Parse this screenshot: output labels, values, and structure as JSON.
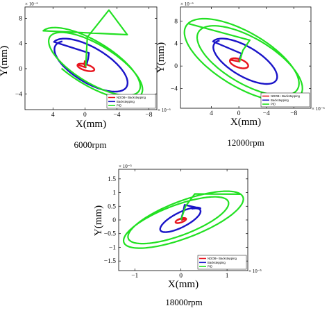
{
  "colors": {
    "ndob": "#e8141e",
    "backstepping": "#1a14c8",
    "pid": "#22e022"
  },
  "chart_data": [
    {
      "type": "line",
      "caption": "6000rpm",
      "xlabel": "X(mm)",
      "ylabel": "Y(mm)",
      "x_exponent": "× 10⁻⁶",
      "y_exponent": "× 10⁻⁶",
      "x_reversed": true,
      "xlim": [
        7.5,
        -9
      ],
      "ylim": [
        -6.5,
        9.8
      ],
      "xticks": [
        4,
        0,
        -4,
        -8
      ],
      "xtick_labels": [
        "4",
        "0",
        "−4",
        "−8"
      ],
      "yticks": [
        -4,
        0,
        4,
        8
      ],
      "ytick_labels": [
        "−4",
        "0",
        "4",
        "8"
      ],
      "legend": [
        "NDOB+ Backstepping",
        "Backstepping",
        "PID"
      ],
      "legend_position": "bottom-right",
      "series": [
        {
          "name": "NDOB+ Backstepping",
          "ellipse": {
            "cx": -0.1,
            "cy": 0.2,
            "a": 1.1,
            "b": 0.45,
            "angle": 22,
            "turns": 1.1,
            "drift": 0.04
          },
          "transient": [
            [
              0,
              1.3
            ],
            [
              0.1,
              0.7
            ],
            [
              -0.1,
              0.2
            ]
          ]
        },
        {
          "name": "Backstepping",
          "ellipse": {
            "cx": -0.6,
            "cy": 0.5,
            "a": 5.6,
            "b": 2.5,
            "angle": 40,
            "turns": 1.05,
            "drift": 0.05
          },
          "transient": [
            [
              -0.2,
              0.6
            ],
            [
              -0.4,
              1.6
            ],
            [
              -0.5,
              2.5
            ]
          ]
        },
        {
          "name": "PID",
          "ellipse": {
            "cx": -1.0,
            "cy": 0.8,
            "a": 7.5,
            "b": 3.0,
            "angle": 40,
            "turns": 1.8,
            "drift": 0.09
          },
          "transient": [
            [
              -0.1,
              0.3
            ],
            [
              -0.3,
              5.0
            ],
            [
              -3.0,
              9.3
            ],
            [
              -5.3,
              5.4
            ]
          ]
        }
      ]
    },
    {
      "type": "line",
      "caption": "12000rpm",
      "xlabel": "X(mm)",
      "ylabel": "Y(mm)",
      "x_exponent": "× 10⁻⁶",
      "y_exponent": "× 10⁻⁶",
      "x_reversed": true,
      "xlim": [
        8.5,
        -10.5
      ],
      "ylim": [
        -7.5,
        10.5
      ],
      "xticks": [
        4,
        0,
        -4,
        -8
      ],
      "xtick_labels": [
        "4",
        "0",
        "−4",
        "−8"
      ],
      "yticks": [
        -4,
        0,
        4,
        8
      ],
      "ytick_labels": [
        "−4",
        "0",
        "4",
        "8"
      ],
      "legend": [
        "NDOB+ Backstepping",
        "Backstepping",
        "PID"
      ],
      "legend_position": "bottom-right",
      "series": [
        {
          "name": "NDOB+ Backstepping",
          "ellipse": {
            "cx": 0.0,
            "cy": 0.5,
            "a": 1.4,
            "b": 0.7,
            "angle": 25,
            "turns": 1.2,
            "drift": 0.05
          },
          "transient": [
            [
              0,
              1.2
            ],
            [
              -0.1,
              0.8
            ]
          ]
        },
        {
          "name": "Backstepping",
          "ellipse": {
            "cx": -0.8,
            "cy": 0.8,
            "a": 5.6,
            "b": 2.4,
            "angle": 38,
            "turns": 1.05,
            "drift": 0.04
          },
          "transient": [
            [
              -0.1,
              1.2
            ],
            [
              -0.4,
              2.2
            ]
          ]
        },
        {
          "name": "PID",
          "ellipse": {
            "cx": -1.0,
            "cy": 1.0,
            "a": 9.6,
            "b": 4.2,
            "angle": 38,
            "turns": 2.6,
            "drift": 0.12
          },
          "transient": [
            [
              -0.1,
              0.8
            ],
            [
              -0.6,
              2.8
            ],
            [
              -1.6,
              4.6
            ]
          ]
        }
      ]
    },
    {
      "type": "line",
      "caption": "18000rpm",
      "xlabel": "X(mm)",
      "ylabel": "Y(mm)",
      "x_exponent": "× 10⁻⁵",
      "y_exponent": "× 10⁻⁵",
      "x_reversed": false,
      "xlim": [
        -1.35,
        1.45
      ],
      "ylim": [
        -1.85,
        1.85
      ],
      "xticks": [
        -1,
        0,
        1
      ],
      "xtick_labels": [
        "−1",
        "0",
        "1"
      ],
      "yticks": [
        -1.5,
        -1,
        -0.5,
        0,
        0.5,
        1,
        1.5
      ],
      "ytick_labels": [
        "−1.5",
        "−1",
        "−0.5",
        "0",
        "0.5",
        "1",
        "1.5"
      ],
      "legend": [
        "NDOB+ Backstepping",
        "Backstepping",
        "PID"
      ],
      "legend_position": "bottom-right",
      "series": [
        {
          "name": "NDOB+ Backstepping",
          "ellipse": {
            "cx": 0.0,
            "cy": -0.02,
            "a": 0.13,
            "b": 0.06,
            "angle": 35,
            "turns": 1.3,
            "drift": 0.05
          },
          "transient": [
            [
              0.05,
              0.1
            ],
            [
              0.02,
              0.0
            ]
          ]
        },
        {
          "name": "Backstepping",
          "ellipse": {
            "cx": 0.0,
            "cy": 0.0,
            "a": 0.58,
            "b": 0.22,
            "angle": 45,
            "turns": 1.1,
            "drift": 0.04
          },
          "transient": [
            [
              0.0,
              0.0
            ],
            [
              0.05,
              0.3
            ],
            [
              0.08,
              0.55
            ]
          ]
        },
        {
          "name": "PID",
          "ellipse": {
            "cx": 0.0,
            "cy": 0.0,
            "a": 1.42,
            "b": 0.55,
            "angle": 36,
            "turns": 2.7,
            "drift": 0.14
          },
          "transient": [
            [
              0.0,
              0.0
            ],
            [
              0.1,
              0.5
            ],
            [
              0.3,
              0.95
            ]
          ]
        }
      ]
    }
  ]
}
